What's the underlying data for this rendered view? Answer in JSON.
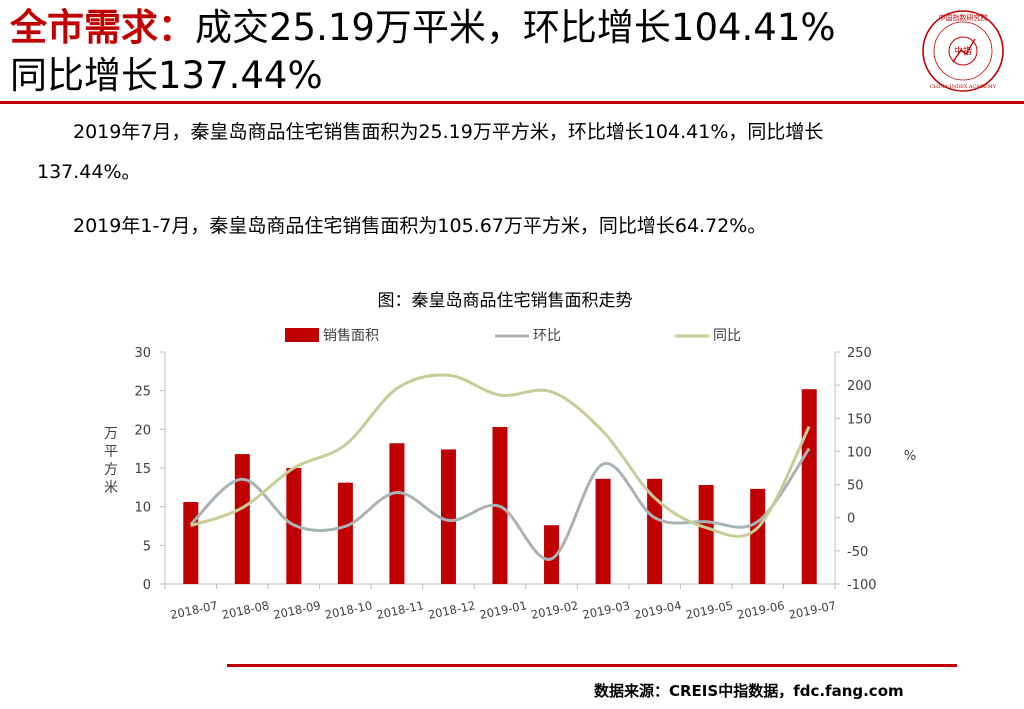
{
  "header": {
    "title_red": "全市需求：",
    "title_rest": "成交25.19万平米，环比增长104.41%",
    "title_line2": "同比增长137.44%"
  },
  "logo": {
    "top_text": "中国指数研究院",
    "center_text": "中指",
    "bottom_text": "CHINA INDEX ACADEMY",
    "icon": "academy-seal-logo"
  },
  "body": {
    "para1_line1": "2019年7月，秦皇岛商品住宅销售面积为25.19万平方米，环比增长104.41%，同比增长",
    "para1_line2": "137.44%。",
    "para2": "2019年1-7月，秦皇岛商品住宅销售面积为105.67万平方米，同比增长64.72%。"
  },
  "source": "数据来源：CREIS中指数据，fdc.fang.com",
  "colors": {
    "accent": "#c00000",
    "bar": "#c00000",
    "mom": "#a9b3b3",
    "yoy": "#c9cc96",
    "axis": "#bfbfbf"
  },
  "chart_data": {
    "type": "bar",
    "title": "图：秦皇岛商品住宅销售面积走势",
    "categories": [
      "2018-07",
      "2018-08",
      "2018-09",
      "2018-10",
      "2018-11",
      "2018-12",
      "2019-01",
      "2019-02",
      "2019-03",
      "2019-04",
      "2019-05",
      "2019-06",
      "2019-07"
    ],
    "series": [
      {
        "name": "销售面积",
        "type": "bar",
        "axis": "left",
        "values": [
          10.6,
          16.8,
          15.0,
          13.1,
          18.2,
          17.4,
          20.3,
          7.6,
          13.6,
          13.6,
          12.8,
          12.3,
          25.19
        ]
      },
      {
        "name": "环比",
        "type": "line",
        "axis": "right",
        "values": [
          -10,
          58,
          -11,
          -13,
          38,
          -4,
          17,
          -62,
          81,
          0,
          -6,
          -6,
          104.41
        ]
      },
      {
        "name": "同比",
        "type": "line",
        "axis": "right",
        "values": [
          -12,
          15,
          75,
          110,
          195,
          215,
          185,
          190,
          130,
          30,
          -15,
          -15,
          137.44
        ]
      }
    ],
    "ylabel": "万平方米",
    "y2label": "%",
    "ylim": [
      0,
      30
    ],
    "y2lim": [
      -100,
      250
    ],
    "yticks": [
      "0",
      "5",
      "10",
      "15",
      "20",
      "25",
      "30"
    ],
    "y2ticks": [
      "-100",
      "-50",
      "0",
      "50",
      "100",
      "150",
      "200",
      "250"
    ],
    "legend": "top",
    "grid": false
  }
}
